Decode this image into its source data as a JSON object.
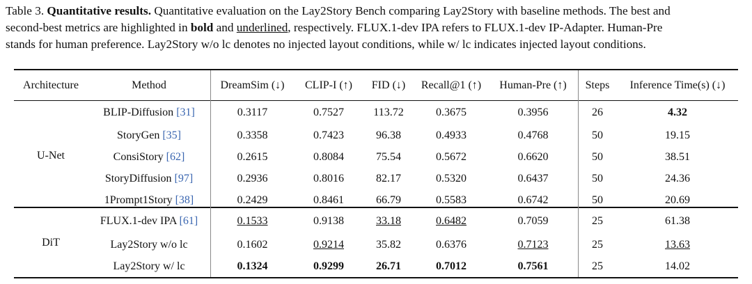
{
  "caption": {
    "label": "Table 3.",
    "title": "Quantitative results.",
    "line1_rest": "Quantitative evaluation on the Lay2Story Bench comparing Lay2Story with baseline methods. The best and",
    "line2_pre": "second-best metrics are highlighted in",
    "bold_word": "bold",
    "and_word": "and",
    "underlined_word": "underlined",
    "line2_post": ", respectively. FLUX.1-dev IPA refers to FLUX.1-dev IP-Adapter. Human-Pre",
    "line3": "stands for human preference. Lay2Story w/o lc denotes no injected layout conditions, while w/ lc indicates injected layout conditions."
  },
  "table": {
    "headers": [
      "Architecture",
      "Method",
      "DreamSim (↓)",
      "CLIP-I (↑)",
      "FID (↓)",
      "Recall@1 (↑)",
      "Human-Pre (↑)",
      "Steps",
      "Inference Time(s) (↓)"
    ],
    "groups": [
      {
        "architecture": "U-Net",
        "rows": [
          {
            "method": "BLIP-Diffusion",
            "ref": "[31]",
            "dreamsim": "0.3117",
            "clipi": "0.7527",
            "fid": "113.72",
            "recall": "0.3675",
            "human": "0.3956",
            "steps": "26",
            "time": "4.32"
          },
          {
            "method": "StoryGen",
            "ref": "[35]",
            "dreamsim": "0.3358",
            "clipi": "0.7423",
            "fid": "96.38",
            "recall": "0.4933",
            "human": "0.4768",
            "steps": "50",
            "time": "19.15"
          },
          {
            "method": "ConsiStory",
            "ref": "[62]",
            "dreamsim": "0.2615",
            "clipi": "0.8084",
            "fid": "75.54",
            "recall": "0.5672",
            "human": "0.6620",
            "steps": "50",
            "time": "38.51"
          },
          {
            "method": "StoryDiffusion",
            "ref": "[97]",
            "dreamsim": "0.2936",
            "clipi": "0.8016",
            "fid": "82.17",
            "recall": "0.5320",
            "human": "0.6437",
            "steps": "50",
            "time": "24.36"
          },
          {
            "method": "1Prompt1Story",
            "ref": "[38]",
            "dreamsim": "0.2429",
            "clipi": "0.8461",
            "fid": "66.79",
            "recall": "0.5583",
            "human": "0.6742",
            "steps": "50",
            "time": "20.69"
          }
        ]
      },
      {
        "architecture": "DiT",
        "rows": [
          {
            "method": "FLUX.1-dev IPA",
            "ref": "[61]",
            "dreamsim": "0.1533",
            "clipi": "0.9138",
            "fid": "33.18",
            "recall": "0.6482",
            "human": "0.7059",
            "steps": "25",
            "time": "61.38"
          },
          {
            "method": "Lay2Story w/o lc",
            "ref": "",
            "dreamsim": "0.1602",
            "clipi": "0.9214",
            "fid": "35.82",
            "recall": "0.6376",
            "human": "0.7123",
            "steps": "25",
            "time": "13.63"
          },
          {
            "method": "Lay2Story w/ lc",
            "ref": "",
            "dreamsim": "0.1324",
            "clipi": "0.9299",
            "fid": "26.71",
            "recall": "0.7012",
            "human": "0.7561",
            "steps": "25",
            "time": "14.02"
          }
        ]
      }
    ]
  }
}
